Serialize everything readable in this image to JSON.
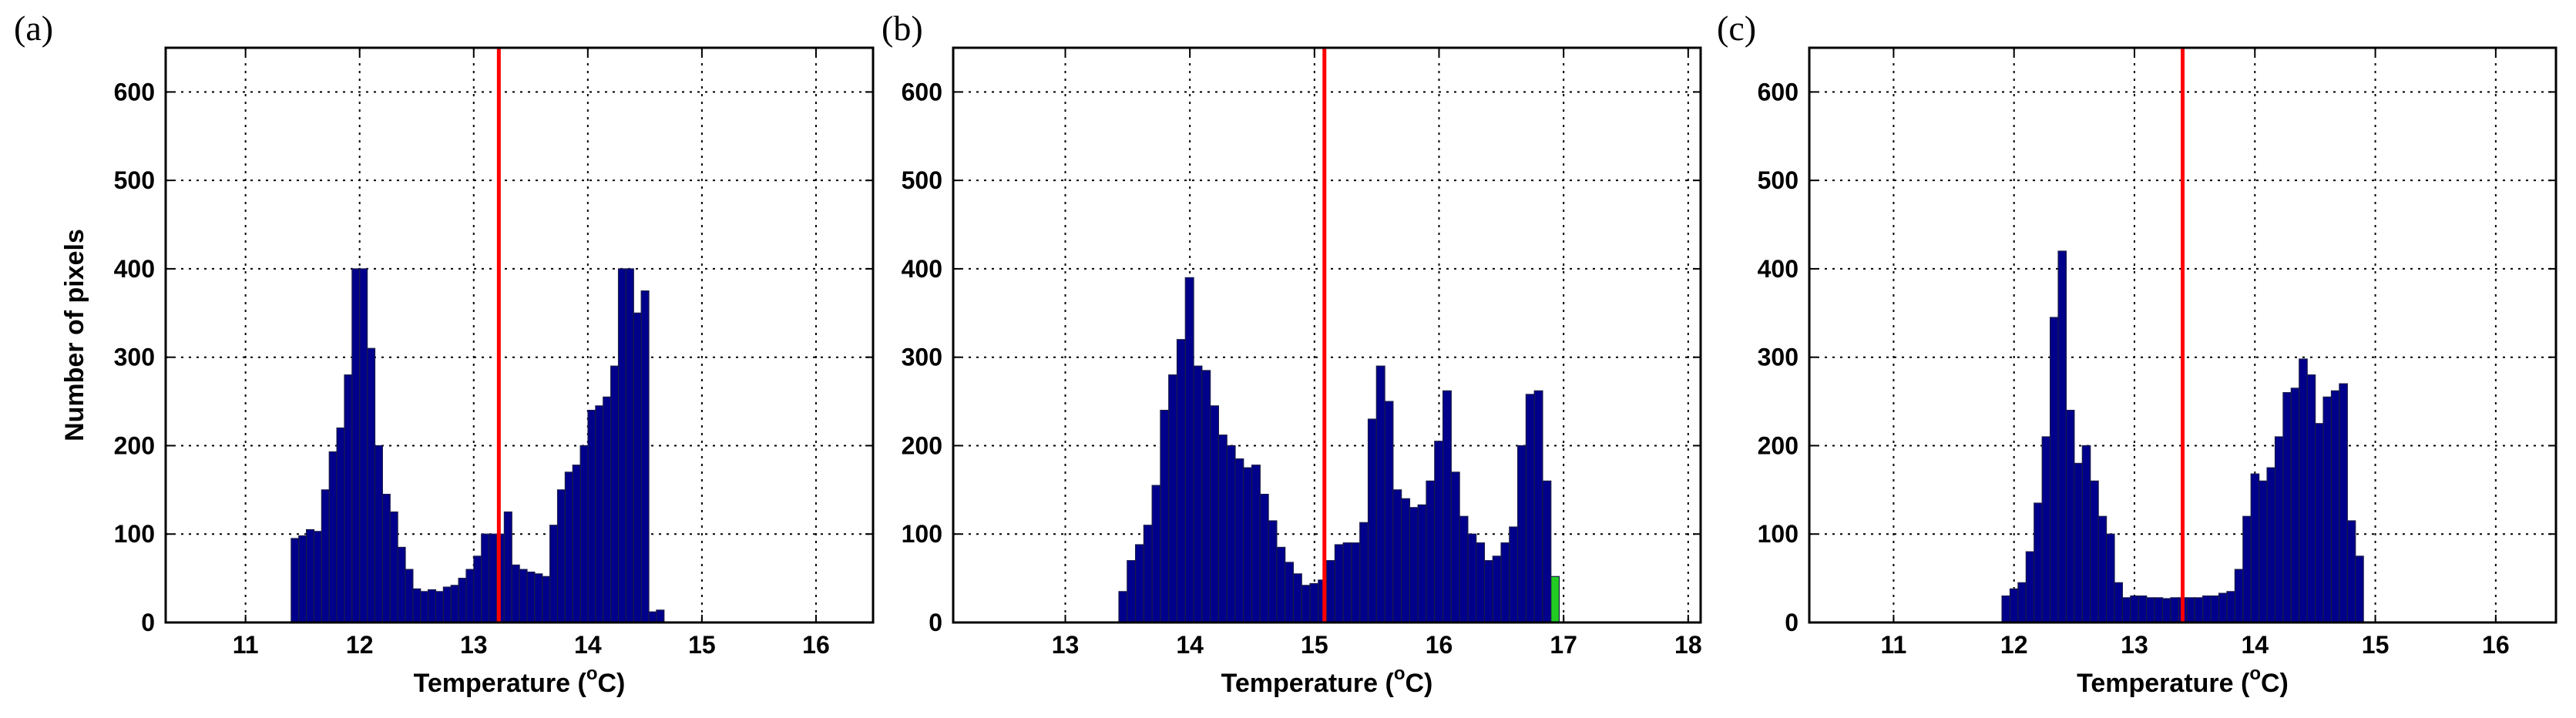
{
  "chart_data": [
    {
      "type": "bar",
      "panel_label": "(a)",
      "xlabel_main": "Temperature (",
      "xlabel_sup": "o",
      "xlabel_tail": "C)",
      "ylabel": "Number of pixels",
      "xlim": [
        10.3,
        16.5
      ],
      "ylim": [
        0,
        650
      ],
      "xticks": [
        "11",
        "12",
        "13",
        "14",
        "15",
        "16"
      ],
      "yticks": [
        "0",
        "100",
        "200",
        "300",
        "400",
        "500",
        "600"
      ],
      "bar_color": "#00008B",
      "marker_color": "#FF0000",
      "grid": true,
      "bins": {
        "start": 11.4,
        "width": 0.0667,
        "values": [
          95,
          98,
          105,
          103,
          150,
          193,
          220,
          280,
          400,
          400,
          310,
          200,
          145,
          125,
          85,
          60,
          38,
          35,
          37,
          35,
          40,
          42,
          50,
          60,
          75,
          100,
          100,
          100,
          125,
          65,
          60,
          57,
          55,
          52,
          110,
          150,
          170,
          178,
          200,
          240,
          245,
          255,
          290,
          400,
          400,
          350,
          375,
          12,
          14
        ]
      },
      "threshold": 13.22,
      "highlight_bins": []
    },
    {
      "type": "bar",
      "panel_label": "(b)",
      "xlabel_main": "Temperature (",
      "xlabel_sup": "o",
      "xlabel_tail": "C)",
      "ylabel": "",
      "xlim": [
        12.1,
        18.1
      ],
      "ylim": [
        0,
        650
      ],
      "xticks": [
        "13",
        "14",
        "15",
        "16",
        "17",
        "18"
      ],
      "yticks": [
        "0",
        "100",
        "200",
        "300",
        "400",
        "500",
        "600"
      ],
      "bar_color": "#00008B",
      "marker_color": "#FF0000",
      "highlight_color": "#22CC22",
      "grid": true,
      "bins": {
        "start": 13.43,
        "width": 0.0667,
        "values": [
          35,
          70,
          88,
          110,
          155,
          240,
          280,
          320,
          390,
          290,
          285,
          245,
          212,
          200,
          185,
          175,
          178,
          145,
          115,
          85,
          68,
          55,
          42,
          44,
          48,
          70,
          88,
          90,
          90,
          113,
          230,
          290,
          250,
          150,
          140,
          130,
          133,
          160,
          205,
          262,
          170,
          120,
          100,
          90,
          70,
          75,
          90,
          108,
          200,
          258,
          262,
          160,
          52
        ]
      },
      "threshold": 15.08,
      "highlight_bins": [
        52
      ]
    },
    {
      "type": "bar",
      "panel_label": "(c)",
      "xlabel_main": "Temperature (",
      "xlabel_sup": "o",
      "xlabel_tail": "C)",
      "ylabel": "",
      "xlim": [
        10.3,
        16.5
      ],
      "ylim": [
        0,
        650
      ],
      "xticks": [
        "11",
        "12",
        "13",
        "14",
        "15",
        "16"
      ],
      "yticks": [
        "0",
        "100",
        "200",
        "300",
        "400",
        "500",
        "600"
      ],
      "bar_color": "#00008B",
      "marker_color": "#FF0000",
      "grid": true,
      "bins": {
        "start": 11.9,
        "width": 0.0667,
        "values": [
          30,
          38,
          45,
          80,
          135,
          210,
          345,
          420,
          240,
          180,
          200,
          160,
          120,
          100,
          45,
          28,
          30,
          30,
          28,
          28,
          27,
          28,
          28,
          28,
          28,
          30,
          30,
          33,
          35,
          60,
          120,
          168,
          160,
          175,
          210,
          260,
          265,
          298,
          280,
          225,
          255,
          262,
          270,
          115,
          75
        ]
      },
      "threshold": 13.4,
      "highlight_bins": []
    }
  ]
}
